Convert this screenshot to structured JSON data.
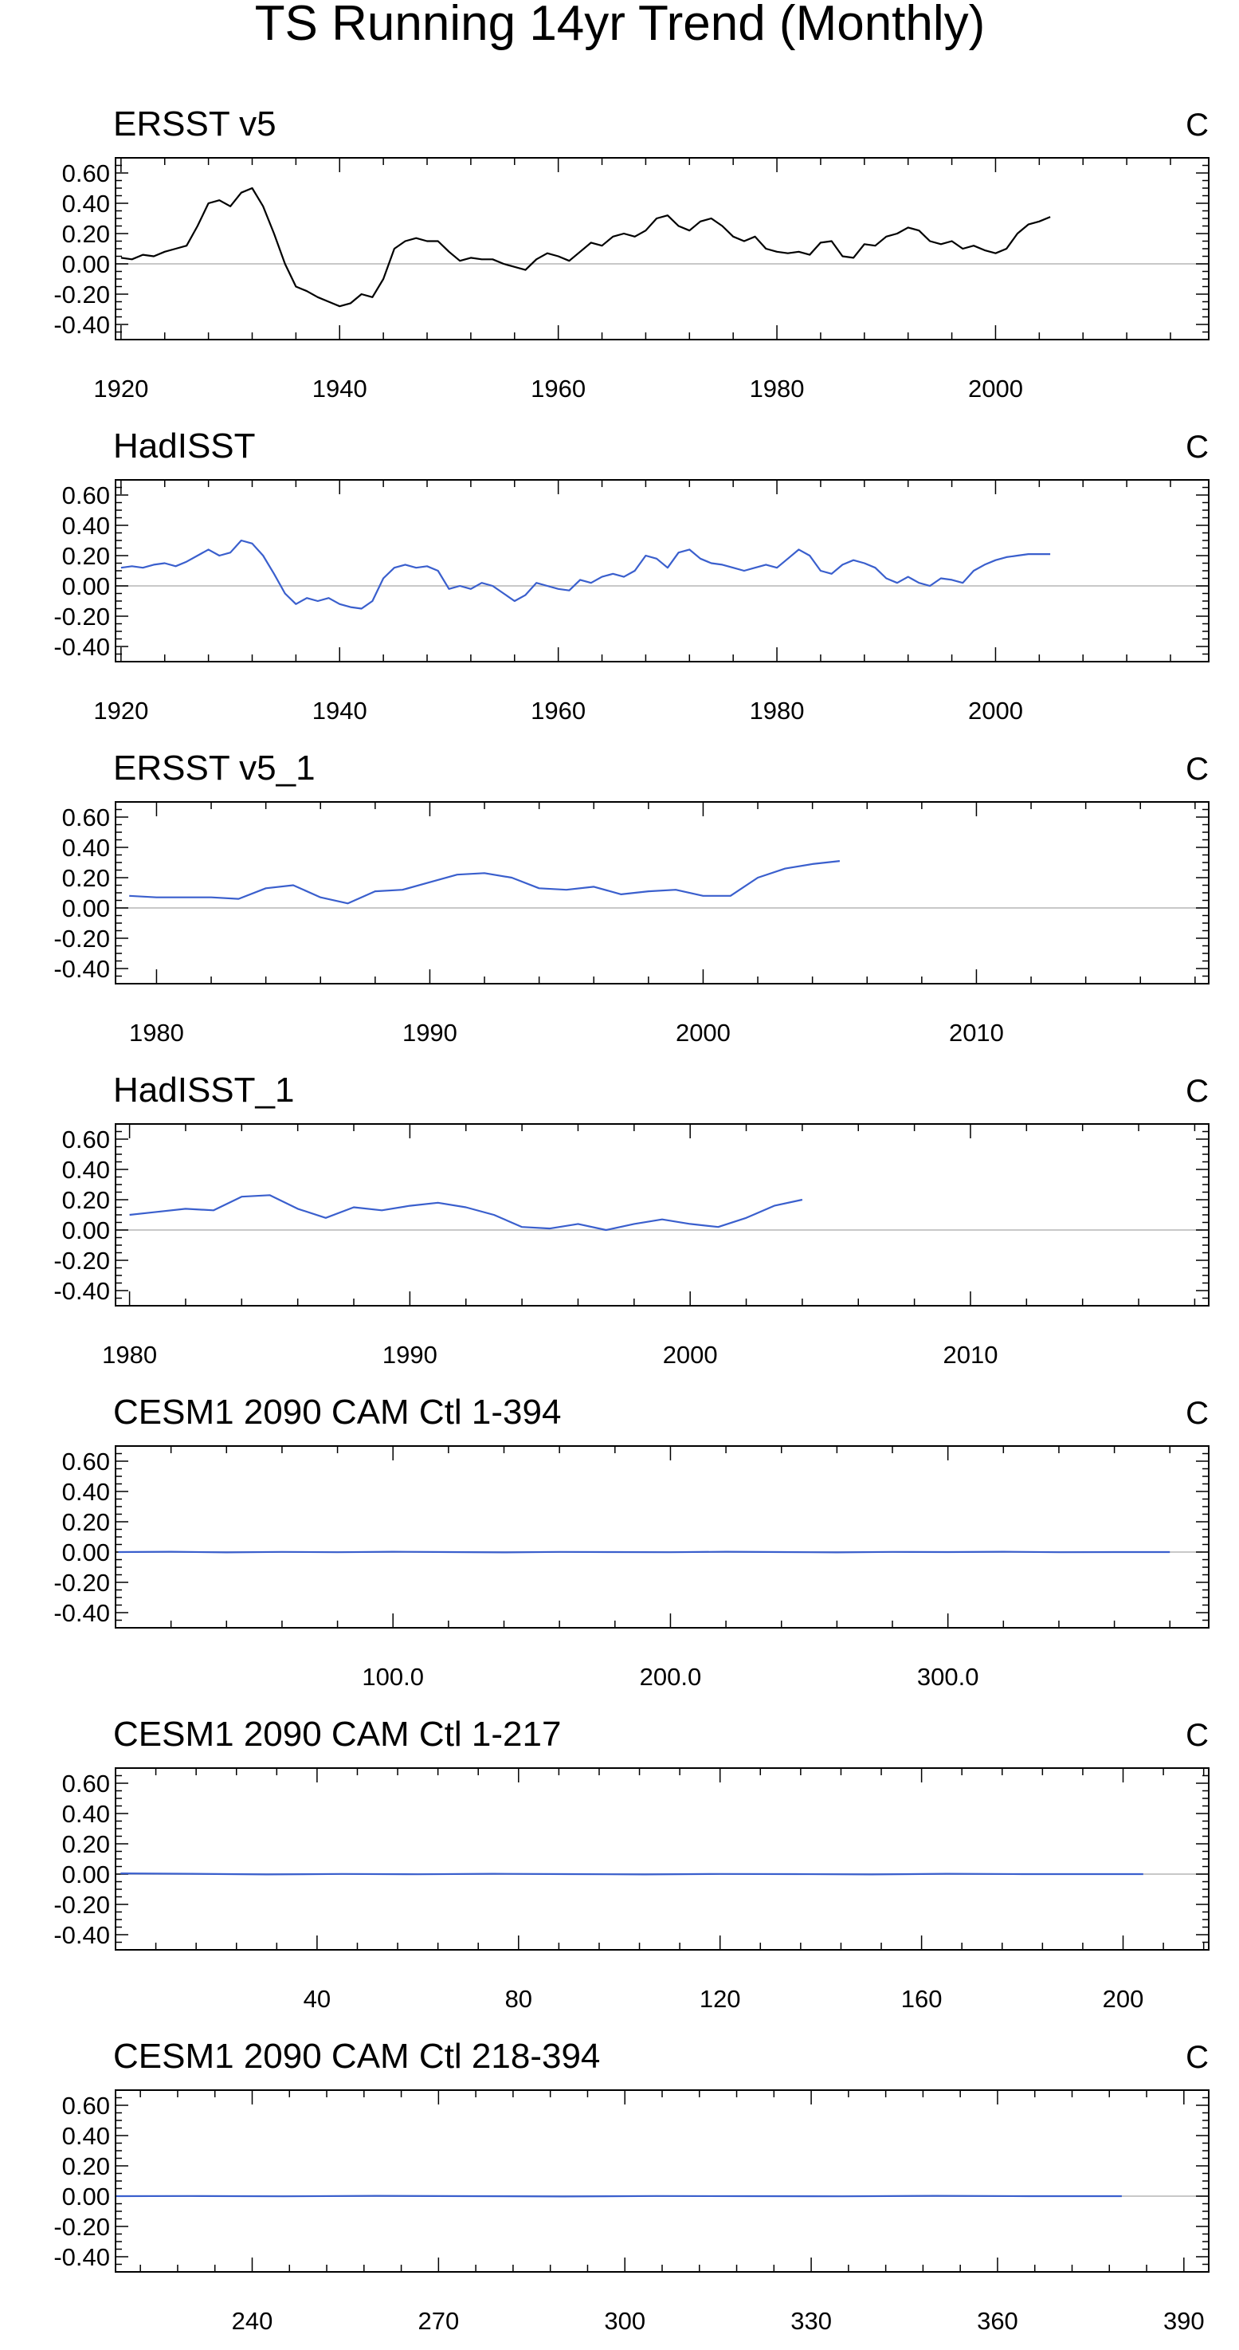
{
  "title": "TS Running 14yr Trend (Monthly)",
  "ytick_values": [
    -0.4,
    -0.2,
    0.0,
    0.2,
    0.4,
    0.6
  ],
  "ytick_labels": [
    "-0.40",
    "-0.20",
    "0.00",
    "0.20",
    "0.40",
    "0.60"
  ],
  "colors": {
    "obs_black": "#000000",
    "model_blue": "#3a5fcd",
    "zero_line": "#c8c8c8",
    "axis": "#000000"
  },
  "chart_data": [
    {
      "type": "line",
      "title": "ERSST v5",
      "units": "C",
      "xlim": [
        1919.5,
        2019.5
      ],
      "ylim": [
        -0.5,
        0.7
      ],
      "xticks": [
        1920,
        1940,
        1960,
        1980,
        2000
      ],
      "xtick_labels": [
        "1920",
        "1940",
        "1960",
        "1980",
        "2000"
      ],
      "line_color": "#000000",
      "x": [
        1920,
        1921,
        1922,
        1923,
        1924,
        1925,
        1926,
        1927,
        1928,
        1929,
        1930,
        1931,
        1932,
        1933,
        1934,
        1935,
        1936,
        1937,
        1938,
        1939,
        1940,
        1941,
        1942,
        1943,
        1944,
        1945,
        1946,
        1947,
        1948,
        1949,
        1950,
        1951,
        1952,
        1953,
        1954,
        1955,
        1956,
        1957,
        1958,
        1959,
        1960,
        1961,
        1962,
        1963,
        1964,
        1965,
        1966,
        1967,
        1968,
        1969,
        1970,
        1971,
        1972,
        1973,
        1974,
        1975,
        1976,
        1977,
        1978,
        1979,
        1980,
        1981,
        1982,
        1983,
        1984,
        1985,
        1986,
        1987,
        1988,
        1989,
        1990,
        1991,
        1992,
        1993,
        1994,
        1995,
        1996,
        1997,
        1998,
        1999,
        2000,
        2001,
        2002,
        2003,
        2004,
        2005
      ],
      "y": [
        0.04,
        0.03,
        0.06,
        0.05,
        0.08,
        0.1,
        0.12,
        0.25,
        0.4,
        0.42,
        0.38,
        0.47,
        0.5,
        0.38,
        0.2,
        0.0,
        -0.15,
        -0.18,
        -0.22,
        -0.25,
        -0.28,
        -0.26,
        -0.2,
        -0.22,
        -0.1,
        0.1,
        0.15,
        0.17,
        0.15,
        0.15,
        0.08,
        0.02,
        0.04,
        0.03,
        0.03,
        0.0,
        -0.02,
        -0.04,
        0.03,
        0.07,
        0.05,
        0.02,
        0.08,
        0.14,
        0.12,
        0.18,
        0.2,
        0.18,
        0.22,
        0.3,
        0.32,
        0.25,
        0.22,
        0.28,
        0.3,
        0.25,
        0.18,
        0.15,
        0.18,
        0.1,
        0.08,
        0.07,
        0.08,
        0.06,
        0.14,
        0.15,
        0.05,
        0.04,
        0.13,
        0.12,
        0.18,
        0.2,
        0.24,
        0.22,
        0.15,
        0.13,
        0.15,
        0.1,
        0.12,
        0.09,
        0.07,
        0.1,
        0.2,
        0.26,
        0.28,
        0.31
      ]
    },
    {
      "type": "line",
      "title": "HadISST",
      "units": "C",
      "xlim": [
        1919.5,
        2019.5
      ],
      "ylim": [
        -0.5,
        0.7
      ],
      "xticks": [
        1920,
        1940,
        1960,
        1980,
        2000
      ],
      "xtick_labels": [
        "1920",
        "1940",
        "1960",
        "1980",
        "2000"
      ],
      "line_color": "#3a5fcd",
      "x": [
        1920,
        1921,
        1922,
        1923,
        1924,
        1925,
        1926,
        1927,
        1928,
        1929,
        1930,
        1931,
        1932,
        1933,
        1934,
        1935,
        1936,
        1937,
        1938,
        1939,
        1940,
        1941,
        1942,
        1943,
        1944,
        1945,
        1946,
        1947,
        1948,
        1949,
        1950,
        1951,
        1952,
        1953,
        1954,
        1955,
        1956,
        1957,
        1958,
        1959,
        1960,
        1961,
        1962,
        1963,
        1964,
        1965,
        1966,
        1967,
        1968,
        1969,
        1970,
        1971,
        1972,
        1973,
        1974,
        1975,
        1976,
        1977,
        1978,
        1979,
        1980,
        1981,
        1982,
        1983,
        1984,
        1985,
        1986,
        1987,
        1988,
        1989,
        1990,
        1991,
        1992,
        1993,
        1994,
        1995,
        1996,
        1997,
        1998,
        1999,
        2000,
        2001,
        2002,
        2003,
        2004,
        2005
      ],
      "y": [
        0.12,
        0.13,
        0.12,
        0.14,
        0.15,
        0.13,
        0.16,
        0.2,
        0.24,
        0.2,
        0.22,
        0.3,
        0.28,
        0.2,
        0.08,
        -0.05,
        -0.12,
        -0.08,
        -0.1,
        -0.08,
        -0.12,
        -0.14,
        -0.15,
        -0.1,
        0.05,
        0.12,
        0.14,
        0.12,
        0.13,
        0.1,
        -0.02,
        0.0,
        -0.02,
        0.02,
        0.0,
        -0.05,
        -0.1,
        -0.06,
        0.02,
        0.0,
        -0.02,
        -0.03,
        0.04,
        0.02,
        0.06,
        0.08,
        0.06,
        0.1,
        0.2,
        0.18,
        0.12,
        0.22,
        0.24,
        0.18,
        0.15,
        0.14,
        0.12,
        0.1,
        0.12,
        0.14,
        0.12,
        0.18,
        0.24,
        0.2,
        0.1,
        0.08,
        0.14,
        0.17,
        0.15,
        0.12,
        0.05,
        0.02,
        0.06,
        0.02,
        0.0,
        0.05,
        0.04,
        0.02,
        0.1,
        0.14,
        0.17,
        0.19,
        0.2,
        0.21,
        0.21,
        0.21
      ]
    },
    {
      "type": "line",
      "title": "ERSST v5_1",
      "units": "C",
      "xlim": [
        1978.5,
        2018.5
      ],
      "ylim": [
        -0.5,
        0.7
      ],
      "xticks": [
        1980,
        1990,
        2000,
        2010
      ],
      "xtick_labels": [
        "1980",
        "1990",
        "2000",
        "2010"
      ],
      "line_color": "#3a5fcd",
      "x": [
        1979,
        1980,
        1981,
        1982,
        1983,
        1984,
        1985,
        1986,
        1987,
        1988,
        1989,
        1990,
        1991,
        1992,
        1993,
        1994,
        1995,
        1996,
        1997,
        1998,
        1999,
        2000,
        2001,
        2002,
        2003,
        2004,
        2005
      ],
      "y": [
        0.08,
        0.07,
        0.07,
        0.07,
        0.06,
        0.13,
        0.15,
        0.07,
        0.03,
        0.11,
        0.12,
        0.17,
        0.22,
        0.23,
        0.2,
        0.13,
        0.12,
        0.14,
        0.09,
        0.11,
        0.12,
        0.08,
        0.08,
        0.2,
        0.26,
        0.29,
        0.31
      ]
    },
    {
      "type": "line",
      "title": "HadISST_1",
      "units": "C",
      "xlim": [
        1979.5,
        2018.5
      ],
      "ylim": [
        -0.5,
        0.7
      ],
      "xticks": [
        1980,
        1990,
        2000,
        2010
      ],
      "xtick_labels": [
        "1980",
        "1990",
        "2000",
        "2010"
      ],
      "line_color": "#3a5fcd",
      "x": [
        1980,
        1981,
        1982,
        1983,
        1984,
        1985,
        1986,
        1987,
        1988,
        1989,
        1990,
        1991,
        1992,
        1993,
        1994,
        1995,
        1996,
        1997,
        1998,
        1999,
        2000,
        2001,
        2002,
        2003,
        2004
      ],
      "y": [
        0.1,
        0.12,
        0.14,
        0.13,
        0.22,
        0.23,
        0.14,
        0.08,
        0.15,
        0.13,
        0.16,
        0.18,
        0.15,
        0.1,
        0.02,
        0.01,
        0.04,
        0.0,
        0.04,
        0.07,
        0.04,
        0.02,
        0.08,
        0.16,
        0.2
      ]
    },
    {
      "type": "line",
      "title": "CESM1 2090 CAM Ctl 1-394",
      "units": "C",
      "xlim": [
        0,
        394
      ],
      "ylim": [
        -0.5,
        0.7
      ],
      "xticks": [
        100,
        200,
        300
      ],
      "xtick_labels": [
        "100.0",
        "200.0",
        "300.0"
      ],
      "line_color": "#3a5fcd",
      "x": [
        1,
        20,
        40,
        60,
        80,
        100,
        120,
        140,
        160,
        180,
        200,
        220,
        240,
        260,
        280,
        300,
        320,
        340,
        360,
        380
      ],
      "y": [
        0.0,
        0.002,
        -0.002,
        0.001,
        -0.001,
        0.002,
        0.0,
        -0.002,
        0.001,
        0.0,
        -0.001,
        0.002,
        0.0,
        -0.002,
        0.001,
        0.0,
        0.002,
        -0.001,
        0.0,
        0.0
      ]
    },
    {
      "type": "line",
      "title": "CESM1 2090 CAM Ctl 1-217",
      "units": "C",
      "xlim": [
        0,
        217
      ],
      "ylim": [
        -0.5,
        0.7
      ],
      "xticks": [
        40,
        80,
        120,
        160,
        200
      ],
      "xtick_labels": [
        "40",
        "80",
        "120",
        "160",
        "200"
      ],
      "line_color": "#3a5fcd",
      "x": [
        1,
        15,
        30,
        45,
        60,
        75,
        90,
        105,
        120,
        135,
        150,
        165,
        180,
        195,
        204
      ],
      "y": [
        0.005,
        0.002,
        -0.002,
        0.001,
        -0.001,
        0.002,
        0.0,
        -0.002,
        0.001,
        0.0,
        -0.002,
        0.002,
        0.0,
        0.0,
        0.0
      ]
    },
    {
      "type": "line",
      "title": "CESM1 2090 CAM Ctl 218-394",
      "units": "C",
      "xlim": [
        218,
        394
      ],
      "ylim": [
        -0.5,
        0.7
      ],
      "xticks": [
        240,
        270,
        300,
        330,
        360,
        390
      ],
      "xtick_labels": [
        "240",
        "270",
        "300",
        "330",
        "360",
        "390"
      ],
      "line_color": "#3a5fcd",
      "x": [
        218,
        230,
        245,
        260,
        275,
        290,
        305,
        320,
        335,
        350,
        365,
        380
      ],
      "y": [
        0.0,
        0.001,
        -0.001,
        0.002,
        0.0,
        -0.002,
        0.001,
        0.0,
        -0.001,
        0.002,
        0.0,
        0.0
      ]
    }
  ]
}
